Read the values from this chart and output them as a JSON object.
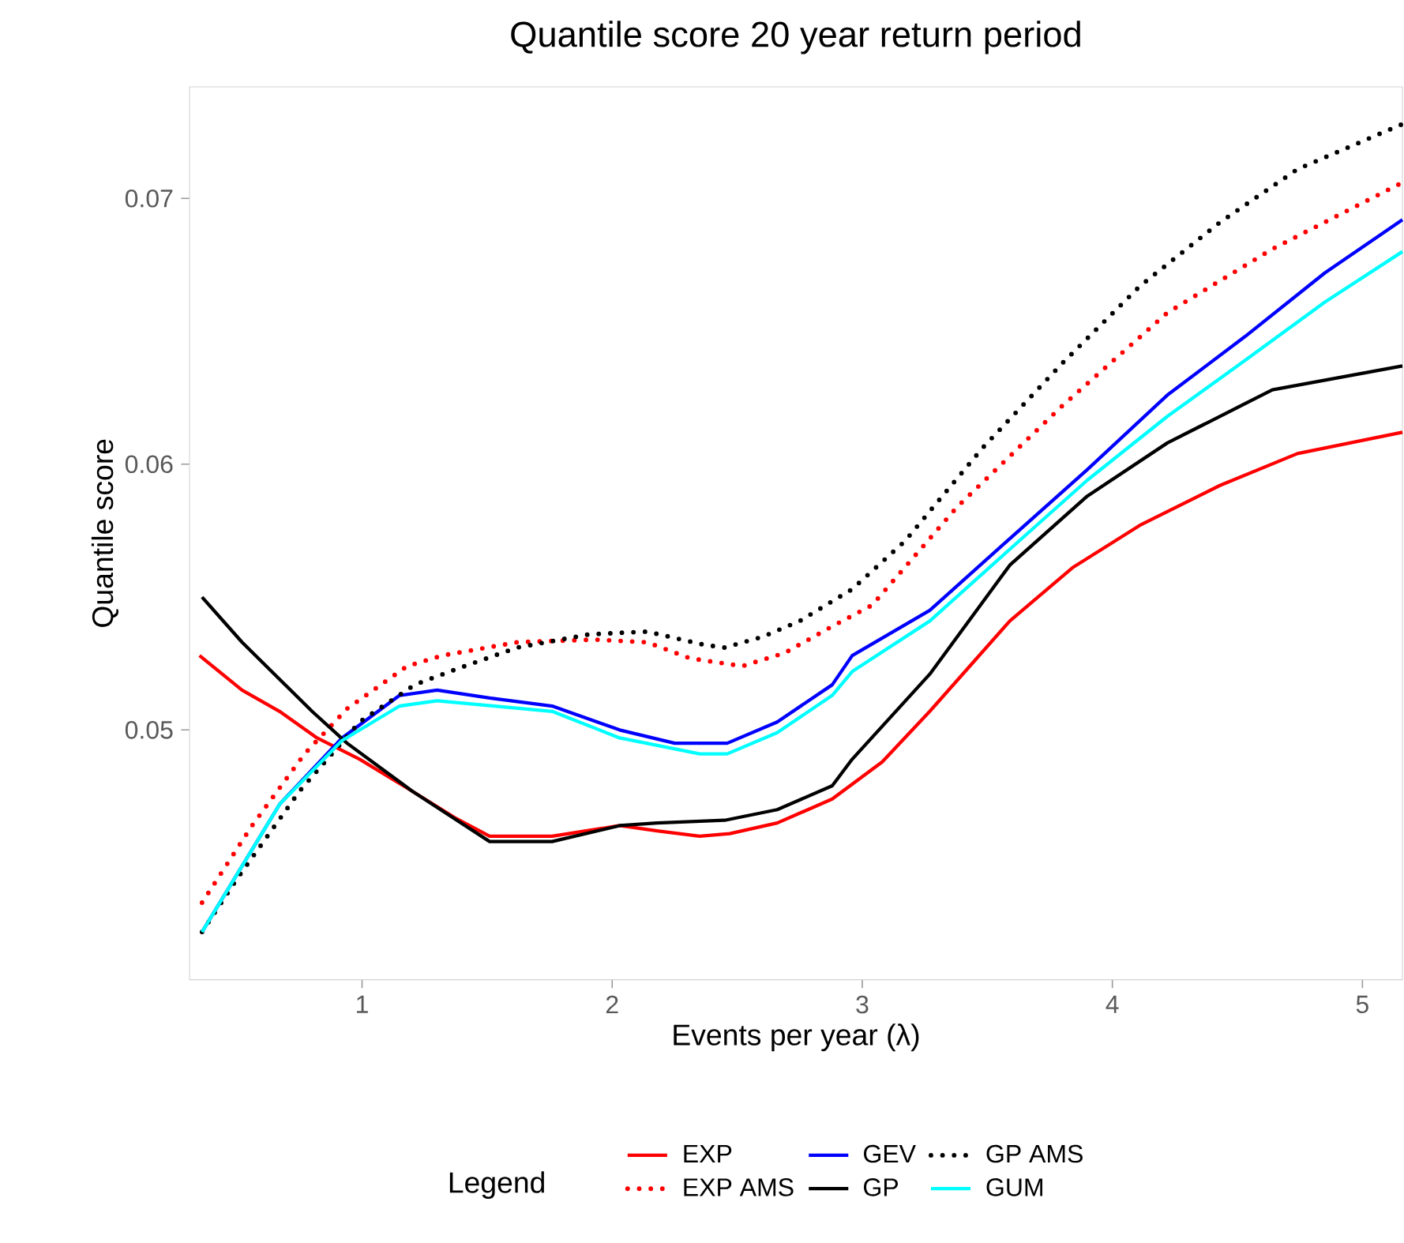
{
  "chart_data": {
    "type": "line",
    "title": "Quantile score 20 year return period",
    "xlabel": "Events per year (λ)",
    "ylabel": "Quantile score",
    "legend_title": "Legend",
    "legend": "bottom",
    "xlim": [
      0.31,
      5.16
    ],
    "ylim": [
      0.0406,
      0.0742
    ],
    "xticks": [
      1,
      2,
      3,
      4,
      5
    ],
    "yticks": [
      0.05,
      0.06,
      0.07
    ],
    "grid": false,
    "series": [
      {
        "name": "EXP",
        "color": "#ff0000",
        "line_style": "solid",
        "x": [
          0.35,
          0.52,
          0.67,
          0.82,
          0.99,
          1.2,
          1.37,
          1.51,
          1.76,
          2.03,
          2.18,
          2.35,
          2.47,
          2.66,
          2.88,
          3.08,
          3.27,
          3.59,
          3.84,
          4.11,
          4.43,
          4.74,
          5.16
        ],
        "values": [
          0.0528,
          0.0515,
          0.0507,
          0.0497,
          0.0489,
          0.0477,
          0.0467,
          0.046,
          0.046,
          0.0464,
          0.0462,
          0.046,
          0.0461,
          0.0465,
          0.0474,
          0.0488,
          0.0507,
          0.0541,
          0.0561,
          0.0577,
          0.0592,
          0.0604,
          0.0612
        ]
      },
      {
        "name": "EXP AMS",
        "color": "#ff0000",
        "line_style": "dotted",
        "x": [
          0.36,
          0.56,
          0.77,
          0.94,
          1.18,
          1.32,
          1.62,
          1.93,
          2.14,
          2.31,
          2.52,
          2.69,
          2.88,
          3.04,
          3.38,
          3.8,
          4.22,
          4.64,
          5.16
        ],
        "values": [
          0.0435,
          0.0464,
          0.0491,
          0.0508,
          0.0524,
          0.0528,
          0.0533,
          0.0534,
          0.0533,
          0.0527,
          0.0524,
          0.0529,
          0.0539,
          0.0547,
          0.0584,
          0.0622,
          0.0657,
          0.0681,
          0.0706
        ]
      },
      {
        "name": "GEV",
        "color": "#0000ff",
        "line_style": "solid",
        "x": [
          0.36,
          0.67,
          0.92,
          1.15,
          1.3,
          1.51,
          1.76,
          2.03,
          2.25,
          2.46,
          2.66,
          2.88,
          2.96,
          3.27,
          3.59,
          3.9,
          4.22,
          4.53,
          4.85,
          5.16
        ],
        "values": [
          0.0424,
          0.0472,
          0.0497,
          0.0513,
          0.0515,
          0.0512,
          0.0509,
          0.05,
          0.0495,
          0.0495,
          0.0503,
          0.0517,
          0.0528,
          0.0545,
          0.0572,
          0.0598,
          0.0626,
          0.0648,
          0.0672,
          0.0692
        ]
      },
      {
        "name": "GP",
        "color": "#000000",
        "line_style": "solid",
        "x": [
          0.36,
          0.52,
          0.8,
          0.94,
          1.2,
          1.51,
          1.76,
          2.03,
          2.18,
          2.45,
          2.66,
          2.88,
          2.96,
          3.27,
          3.59,
          3.9,
          4.22,
          4.64,
          5.16
        ],
        "values": [
          0.055,
          0.0533,
          0.0507,
          0.0495,
          0.0477,
          0.0458,
          0.0458,
          0.0464,
          0.0465,
          0.0466,
          0.047,
          0.0479,
          0.0489,
          0.0521,
          0.0562,
          0.0588,
          0.0608,
          0.0628,
          0.0637
        ]
      },
      {
        "name": "GP AMS",
        "color": "#000000",
        "line_style": "dotted",
        "x": [
          0.36,
          0.5,
          0.75,
          0.99,
          1.21,
          1.38,
          1.62,
          1.91,
          2.14,
          2.37,
          2.45,
          2.6,
          2.75,
          2.96,
          3.17,
          3.48,
          3.8,
          4.11,
          4.43,
          4.74,
          5.16
        ],
        "values": [
          0.0424,
          0.0444,
          0.0477,
          0.0503,
          0.0517,
          0.0523,
          0.0531,
          0.0536,
          0.0537,
          0.0532,
          0.0531,
          0.0535,
          0.0541,
          0.0553,
          0.0571,
          0.0606,
          0.0638,
          0.0667,
          0.0691,
          0.0711,
          0.0728
        ]
      },
      {
        "name": "GUM",
        "color": "#00ffff",
        "line_style": "solid",
        "x": [
          0.36,
          0.67,
          0.92,
          1.15,
          1.3,
          1.76,
          2.03,
          2.35,
          2.46,
          2.66,
          2.88,
          2.96,
          3.27,
          3.59,
          3.9,
          4.22,
          4.53,
          4.85,
          5.16
        ],
        "values": [
          0.0424,
          0.0472,
          0.0496,
          0.0509,
          0.0511,
          0.0507,
          0.0497,
          0.0491,
          0.0491,
          0.0499,
          0.0513,
          0.0522,
          0.0541,
          0.0568,
          0.0594,
          0.0618,
          0.0639,
          0.0661,
          0.068
        ]
      }
    ]
  }
}
